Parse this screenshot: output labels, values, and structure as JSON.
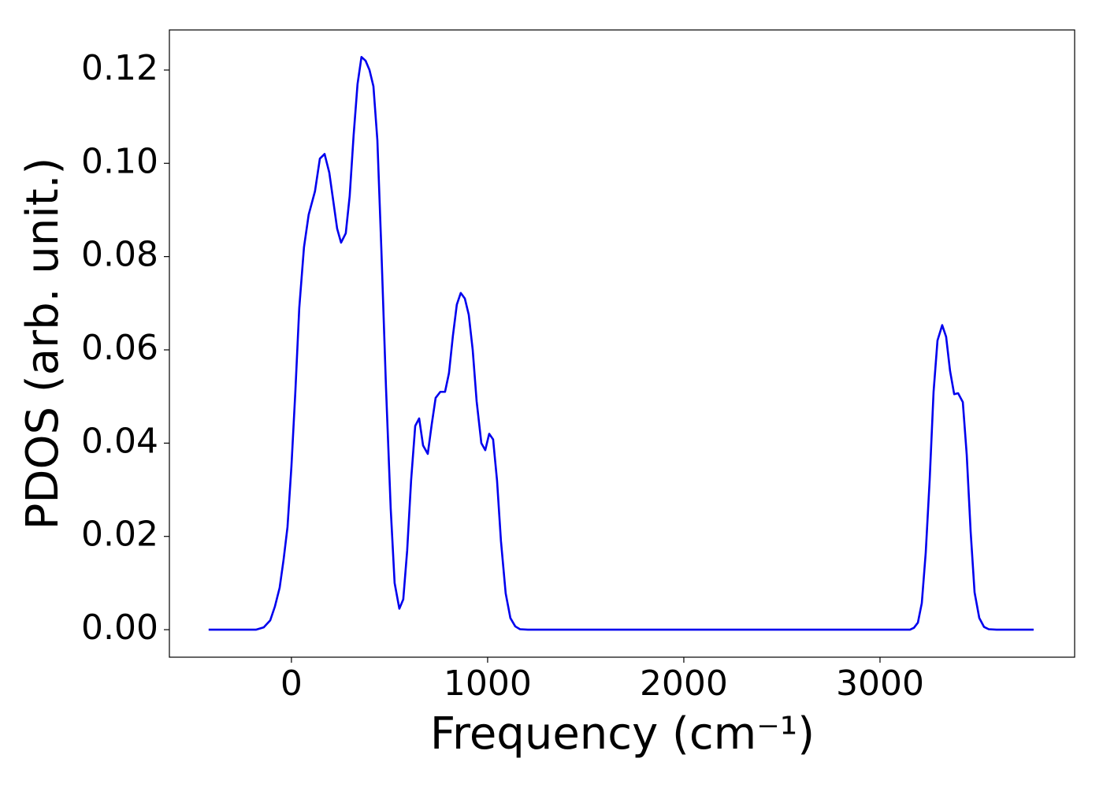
{
  "chart_data": {
    "type": "line",
    "xlabel": "Frequency (cm⁻¹)",
    "ylabel": "PDOS (arb. unit.)",
    "x": [
      -422,
      -181,
      -141,
      -108,
      -84,
      -60,
      -40,
      -20,
      0,
      20,
      40,
      64,
      88,
      120,
      145,
      169,
      193,
      213,
      233,
      253,
      277,
      297,
      317,
      337,
      357,
      378,
      398,
      418,
      438,
      458,
      482,
      506,
      526,
      550,
      570,
      590,
      610,
      631,
      651,
      671,
      695,
      715,
      735,
      759,
      783,
      803,
      823,
      843,
      863,
      884,
      904,
      924,
      944,
      968,
      988,
      1008,
      1028,
      1048,
      1068,
      1092,
      1116,
      1141,
      1165,
      1205,
      3153,
      3173,
      3193,
      3213,
      3233,
      3253,
      3273,
      3293,
      3317,
      3337,
      3357,
      3378,
      3398,
      3422,
      3442,
      3462,
      3482,
      3506,
      3530,
      3554,
      3594,
      3783
    ],
    "series": [
      {
        "color": "#0000ee",
        "values": [
          0,
          0,
          0.0005,
          0.002,
          0.005,
          0.009,
          0.015,
          0.022,
          0.035,
          0.051,
          0.069,
          0.082,
          0.089,
          0.094,
          0.101,
          0.102,
          0.098,
          0.092,
          0.086,
          0.083,
          0.085,
          0.093,
          0.106,
          0.117,
          0.1228,
          0.122,
          0.12,
          0.1165,
          0.105,
          0.082,
          0.052,
          0.026,
          0.01,
          0.0045,
          0.0065,
          0.017,
          0.032,
          0.0437,
          0.0453,
          0.0395,
          0.0377,
          0.044,
          0.0497,
          0.051,
          0.051,
          0.055,
          0.063,
          0.0697,
          0.0722,
          0.071,
          0.0675,
          0.06,
          0.049,
          0.04,
          0.0385,
          0.042,
          0.0408,
          0.032,
          0.019,
          0.0078,
          0.0025,
          0.0007,
          0.0001,
          0,
          0,
          0.0004,
          0.0015,
          0.0057,
          0.0165,
          0.032,
          0.051,
          0.062,
          0.0653,
          0.0628,
          0.0555,
          0.0505,
          0.0507,
          0.0488,
          0.0375,
          0.021,
          0.008,
          0.0025,
          0.0006,
          0.0001,
          0,
          0
        ]
      }
    ],
    "xlim": [
      -622,
      3992
    ],
    "ylim": [
      -0.0059,
      0.1286
    ],
    "xticks": [
      0,
      1000,
      2000,
      3000
    ],
    "yticks": [
      {
        "value": 0,
        "label": "0.00"
      },
      {
        "value": 0.02,
        "label": "0.02"
      },
      {
        "value": 0.04,
        "label": "0.04"
      },
      {
        "value": 0.06,
        "label": "0.06"
      },
      {
        "value": 0.08,
        "label": "0.08"
      },
      {
        "value": 0.1,
        "label": "0.10"
      },
      {
        "value": 0.12,
        "label": "0.12"
      }
    ],
    "grid": false
  }
}
